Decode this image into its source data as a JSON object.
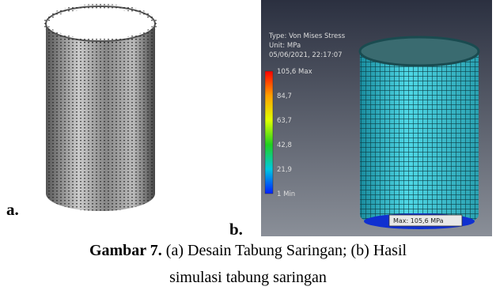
{
  "figure": {
    "panel_a": {
      "label": "a."
    },
    "panel_b": {
      "label": "b.",
      "legend": {
        "type": "Type: Von Mises Stress",
        "unit": "Unit: MPa",
        "timestamp": "05/06/2021, 22:17:07",
        "levels": [
          "105,6 Max",
          "84,7",
          "63,7",
          "42,8",
          "21,9",
          "1 Min"
        ]
      },
      "max_callout": "Max: 105,6 MPa"
    }
  },
  "caption": {
    "number": "Gambar 7.",
    "line1": " (a) Desain Tabung Saringan; (b) Hasil",
    "line2": "simulasi tabung saringan"
  }
}
